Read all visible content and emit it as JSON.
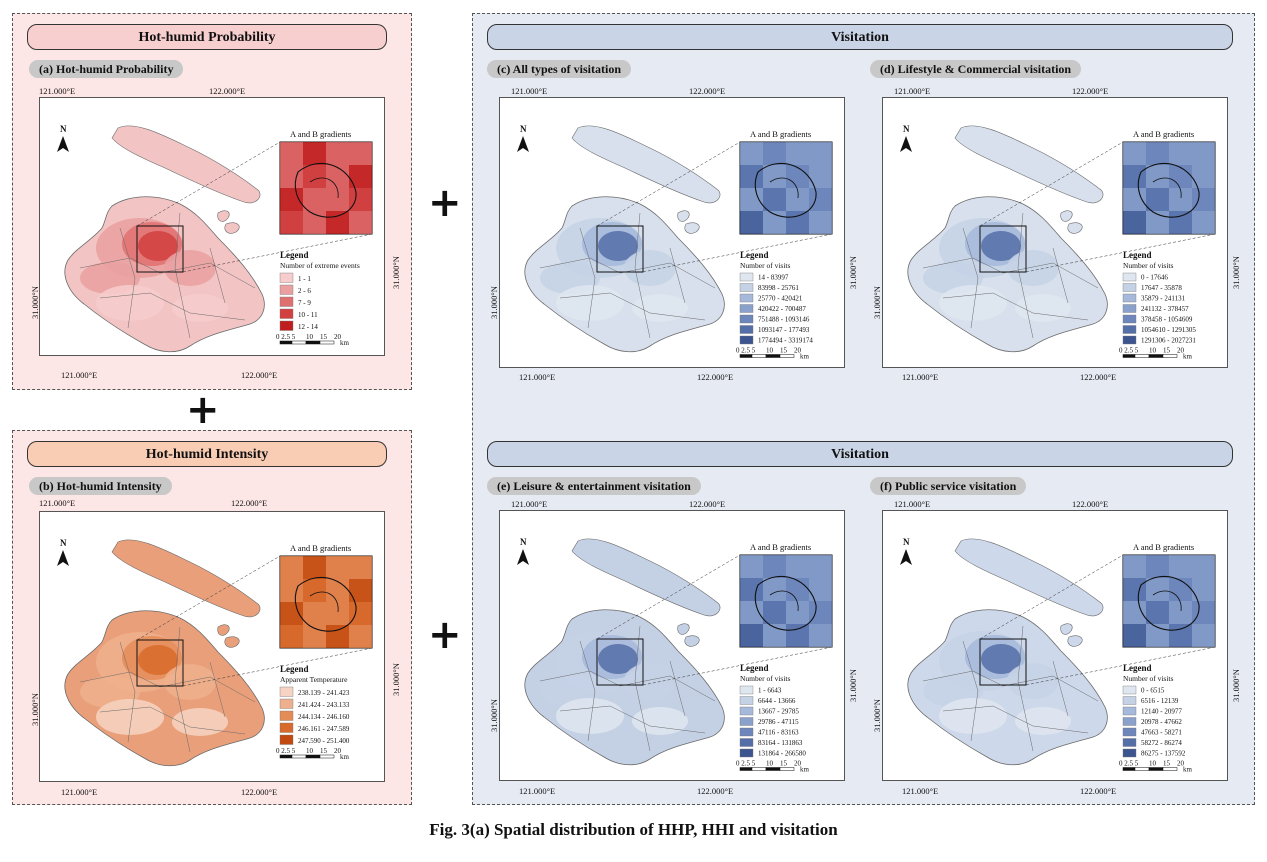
{
  "caption": "Fig. 3(a) Spatial distribution of HHP, HHI and visitation",
  "plus_sign": "+",
  "common": {
    "lon_left": "121.000°E",
    "lon_right": "122.000°E",
    "lat": "31.000°N",
    "inset_title": "A and B gradients",
    "legend_title": "Legend",
    "north": "N",
    "scale_labels": [
      "0 2.5 5",
      "10",
      "15",
      "20"
    ],
    "scale_unit": "km"
  },
  "hhp_panel": {
    "header": "Hot-humid Probability",
    "map": {
      "label": "(a) Hot-humid Probability",
      "lat": "31.000°N",
      "legend_subtitle": "Number of extreme events",
      "legend_items": [
        "1 - 1",
        "2 - 6",
        "7 - 9",
        "10 - 11",
        "12 - 14"
      ],
      "colors": [
        "#f7cccc",
        "#eaa0a0",
        "#e07070",
        "#d24040",
        "#c01e1e"
      ],
      "fill": "#f2c4c4",
      "inner_fill": "#d04040"
    }
  },
  "hhi_panel": {
    "header": "Hot-humid Intensity",
    "map": {
      "label": "(b) Hot-humid Intensity",
      "lat": "31.000°N",
      "legend_subtitle": "Apparent Temperature",
      "legend_items": [
        "238.139 - 241.423",
        "241.424 - 243.133",
        "244.134 - 246.160",
        "246.161 - 247.589",
        "247.590 - 251.400"
      ],
      "colors": [
        "#f6d3c2",
        "#eeb08c",
        "#e48c58",
        "#d86a2c",
        "#c24a10"
      ],
      "fill": "#e9a07a",
      "inner_fill": "#d56a2c"
    }
  },
  "visit_panel": {
    "header_top": "Visitation",
    "header_bottom": "Visitation",
    "maps": [
      {
        "label": "(c) All types of visitation",
        "lat": "31.000°N",
        "legend_subtitle": "Number of visits",
        "legend_items": [
          "14 - 83997",
          "83998 - 25761",
          "25770 - 420421",
          "420422 - 700487",
          "751488 - 1093146",
          "1093147 - 177493",
          "1774494 - 3319174"
        ],
        "colors": [
          "#dfe6f0",
          "#c5d2e6",
          "#a6b9da",
          "#8aa1cc",
          "#6d86bc",
          "#546ea8",
          "#3c5590"
        ],
        "fill": "#d7e0ec",
        "inner_fill": "#6d86bc"
      },
      {
        "label": "(d) Lifestyle & Commercial visitation",
        "lat": "31.000°N",
        "legend_subtitle": "Number of visits",
        "legend_items": [
          "0 - 17646",
          "17647 - 35878",
          "35879 - 241131",
          "241132 - 378457",
          "378458 - 1054609",
          "1054610 - 1291305",
          "1291306 - 2027231"
        ],
        "colors": [
          "#dfe6f0",
          "#c5d2e6",
          "#a6b9da",
          "#8aa1cc",
          "#6d86bc",
          "#546ea8",
          "#3c5590"
        ],
        "fill": "#d7e0ec",
        "inner_fill": "#6d86bc"
      },
      {
        "label": "(e) Leisure & entertainment visitation",
        "lat": "31.000°N",
        "legend_subtitle": "Number of visits",
        "legend_items": [
          "1 - 6643",
          "6644 - 13666",
          "13667 - 29785",
          "29786 - 47115",
          "47116 - 83163",
          "83164 - 131863",
          "131864 - 266580"
        ],
        "colors": [
          "#dfe6f0",
          "#c5d2e6",
          "#a6b9da",
          "#8aa1cc",
          "#6d86bc",
          "#546ea8",
          "#3c5590"
        ],
        "fill": "#c4d1e5",
        "inner_fill": "#6d86bc"
      },
      {
        "label": "(f) Public service visitation",
        "lat": "31.000°N",
        "legend_subtitle": "Number of visits",
        "legend_items": [
          "0 - 6515",
          "6516 - 12139",
          "12140 - 20977",
          "20978 - 47662",
          "47663 - 58271",
          "58272 - 86274",
          "86275 - 137592"
        ],
        "colors": [
          "#dfe6f0",
          "#c5d2e6",
          "#a6b9da",
          "#8aa1cc",
          "#6d86bc",
          "#546ea8",
          "#3c5590"
        ],
        "fill": "#cdd8ea",
        "inner_fill": "#6d86bc"
      }
    ]
  }
}
